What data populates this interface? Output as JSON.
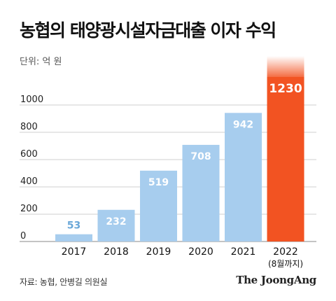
{
  "title": "농협의 태양광시설자금대출 이자 수익",
  "unit_label": "단위: 억 원",
  "source": "자료: 농협, 안병길 의원실",
  "brand": "The JoongAng",
  "colors": {
    "bar": "#a7cdee",
    "highlight_bar": "#f25322",
    "bar_label": "#ffffff",
    "first_bar_label": "#6aa7d8",
    "grid": "#cfcfcf",
    "text": "#111111"
  },
  "chart_data": {
    "type": "bar",
    "categories": [
      "2017",
      "2018",
      "2019",
      "2020",
      "2021",
      "2022"
    ],
    "category_sublabels": [
      "",
      "",
      "",
      "",
      "",
      "(8월까지)"
    ],
    "values": [
      53,
      232,
      519,
      708,
      942,
      1230
    ],
    "data_labels": [
      "53",
      "232",
      "519",
      "708",
      "942",
      "1230"
    ],
    "highlight_index": 5,
    "yticks": [
      0,
      200,
      400,
      600,
      800,
      1000
    ],
    "ylim": [
      0,
      1000
    ],
    "grid": true
  }
}
